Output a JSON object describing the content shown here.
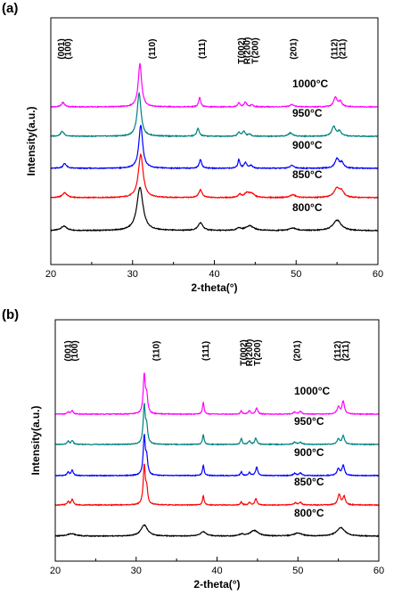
{
  "chart_data": [
    {
      "type": "line",
      "panel_label": "(a)",
      "xlabel": "2-theta(°)",
      "ylabel": "Intensity(a.u.)",
      "xlim": [
        20,
        60
      ],
      "x_ticks": [
        20,
        30,
        40,
        50,
        60
      ],
      "y_ticks_shown": false,
      "grid": false,
      "series": [
        {
          "label": "800°C",
          "color": "#000000",
          "peaks": [
            [
              21.6,
              0.9,
              0.45
            ],
            [
              30.9,
              9.0,
              0.45
            ],
            [
              38.3,
              1.6,
              0.35
            ],
            [
              43.0,
              0.5,
              0.25
            ],
            [
              44.3,
              1.0,
              0.6
            ],
            [
              49.6,
              0.5,
              0.5
            ],
            [
              55.0,
              2.2,
              0.6
            ]
          ]
        },
        {
          "label": "850°C",
          "color": "#ff0000",
          "peaks": [
            [
              21.7,
              1.0,
              0.35
            ],
            [
              31.0,
              9.0,
              0.35
            ],
            [
              38.3,
              1.6,
              0.25
            ],
            [
              43.1,
              0.6,
              0.2
            ],
            [
              44.0,
              1.0,
              0.4
            ],
            [
              44.6,
              0.7,
              0.35
            ],
            [
              49.6,
              0.6,
              0.4
            ],
            [
              55.0,
              2.0,
              0.45
            ],
            [
              55.6,
              1.0,
              0.3
            ]
          ]
        },
        {
          "label": "900°C",
          "color": "#0000ff",
          "peaks": [
            [
              21.7,
              1.0,
              0.25
            ],
            [
              31.0,
              9.0,
              0.28
            ],
            [
              38.3,
              1.8,
              0.18
            ],
            [
              43.0,
              1.8,
              0.15
            ],
            [
              43.8,
              1.2,
              0.2
            ],
            [
              44.5,
              0.6,
              0.2
            ],
            [
              49.5,
              0.6,
              0.3
            ],
            [
              55.0,
              2.0,
              0.3
            ],
            [
              55.6,
              1.1,
              0.25
            ]
          ]
        },
        {
          "label": "950°C",
          "color": "#008080",
          "peaks": [
            [
              21.4,
              1.0,
              0.25
            ],
            [
              30.8,
              9.0,
              0.28
            ],
            [
              38.0,
              1.6,
              0.18
            ],
            [
              43.0,
              0.8,
              0.18
            ],
            [
              43.6,
              1.0,
              0.2
            ],
            [
              44.3,
              0.4,
              0.2
            ],
            [
              49.3,
              0.7,
              0.3
            ],
            [
              54.6,
              2.0,
              0.28
            ],
            [
              55.3,
              1.0,
              0.25
            ]
          ]
        },
        {
          "label": "1000°C",
          "color": "#ff00ff",
          "peaks": [
            [
              21.5,
              0.9,
              0.22
            ],
            [
              30.9,
              9.0,
              0.25
            ],
            [
              38.2,
              1.9,
              0.15
            ],
            [
              43.0,
              0.9,
              0.15
            ],
            [
              43.8,
              1.0,
              0.18
            ],
            [
              44.6,
              0.4,
              0.18
            ],
            [
              49.5,
              0.5,
              0.3
            ],
            [
              54.8,
              2.0,
              0.25
            ],
            [
              55.4,
              1.1,
              0.22
            ]
          ]
        }
      ],
      "peak_annotations": [
        {
          "text": "(001)",
          "x": 21.2
        },
        {
          "text": "(100)",
          "x": 22.0
        },
        {
          "text": "(110)",
          "x": 32.3
        },
        {
          "text": "(111)",
          "x": 38.4
        },
        {
          "text": "T(002)",
          "x": 43.2
        },
        {
          "text": "R(200)",
          "x": 43.9
        },
        {
          "text": "T(200)",
          "x": 44.9
        },
        {
          "text": "(201)",
          "x": 49.6
        },
        {
          "text": "(112)",
          "x": 54.6
        },
        {
          "text": "(211)",
          "x": 55.6
        }
      ]
    },
    {
      "type": "line",
      "panel_label": "(b)",
      "xlabel": "2-theta(°)",
      "ylabel": "Intensity(a.u.)",
      "xlim": [
        20,
        60
      ],
      "x_ticks": [
        20,
        30,
        40,
        50,
        60
      ],
      "y_ticks_shown": false,
      "grid": false,
      "series": [
        {
          "label": "800°C",
          "color": "#000000",
          "peaks": [
            [
              22.0,
              0.6,
              0.6
            ],
            [
              31.0,
              2.6,
              0.5
            ],
            [
              38.3,
              1.0,
              0.45
            ],
            [
              43.0,
              0.4,
              0.3
            ],
            [
              44.6,
              1.3,
              0.6
            ],
            [
              50.0,
              0.7,
              0.6
            ],
            [
              55.3,
              2.0,
              0.6
            ]
          ]
        },
        {
          "label": "850°C",
          "color": "#ff0000",
          "peaks": [
            [
              21.6,
              0.8,
              0.15
            ],
            [
              22.1,
              1.3,
              0.15
            ],
            [
              31.0,
              9.0,
              0.15
            ],
            [
              31.3,
              3.5,
              0.15
            ],
            [
              38.3,
              2.1,
              0.12
            ],
            [
              43.0,
              0.8,
              0.12
            ],
            [
              44.0,
              0.6,
              0.15
            ],
            [
              44.8,
              1.5,
              0.15
            ],
            [
              49.7,
              0.5,
              0.2
            ],
            [
              50.3,
              0.6,
              0.2
            ],
            [
              55.1,
              2.4,
              0.2
            ],
            [
              55.7,
              2.0,
              0.18
            ]
          ]
        },
        {
          "label": "900°C",
          "color": "#0000ff",
          "peaks": [
            [
              21.6,
              0.8,
              0.15
            ],
            [
              22.1,
              1.2,
              0.15
            ],
            [
              31.0,
              9.0,
              0.15
            ],
            [
              31.3,
              3.8,
              0.15
            ],
            [
              38.3,
              2.5,
              0.12
            ],
            [
              43.0,
              0.9,
              0.12
            ],
            [
              44.0,
              0.7,
              0.15
            ],
            [
              44.9,
              2.0,
              0.15
            ],
            [
              49.6,
              0.5,
              0.2
            ],
            [
              50.3,
              0.6,
              0.2
            ],
            [
              55.0,
              1.6,
              0.2
            ],
            [
              55.6,
              2.4,
              0.18
            ]
          ]
        },
        {
          "label": "950°C",
          "color": "#008080",
          "peaks": [
            [
              21.6,
              0.7,
              0.15
            ],
            [
              22.1,
              0.9,
              0.15
            ],
            [
              31.0,
              9.0,
              0.15
            ],
            [
              31.3,
              3.8,
              0.15
            ],
            [
              38.3,
              2.3,
              0.12
            ],
            [
              43.0,
              1.4,
              0.12
            ],
            [
              44.0,
              0.8,
              0.15
            ],
            [
              44.8,
              1.5,
              0.15
            ],
            [
              49.6,
              0.5,
              0.2
            ],
            [
              50.3,
              0.5,
              0.2
            ],
            [
              55.0,
              1.2,
              0.2
            ],
            [
              55.6,
              2.0,
              0.18
            ]
          ]
        },
        {
          "label": "1000°C",
          "color": "#ff00ff",
          "peaks": [
            [
              21.6,
              0.5,
              0.15
            ],
            [
              22.1,
              0.8,
              0.15
            ],
            [
              31.0,
              9.0,
              0.15
            ],
            [
              31.3,
              4.0,
              0.15
            ],
            [
              38.3,
              2.7,
              0.12
            ],
            [
              43.0,
              0.8,
              0.12
            ],
            [
              44.0,
              0.8,
              0.15
            ],
            [
              44.9,
              1.5,
              0.15
            ],
            [
              49.6,
              0.5,
              0.2
            ],
            [
              50.3,
              0.6,
              0.2
            ],
            [
              55.0,
              1.6,
              0.2
            ],
            [
              55.6,
              3.0,
              0.18
            ]
          ]
        }
      ],
      "peak_annotations": [
        {
          "text": "(001)",
          "x": 21.5
        },
        {
          "text": "(100)",
          "x": 22.3
        },
        {
          "text": "(110)",
          "x": 32.4
        },
        {
          "text": "(111)",
          "x": 38.5
        },
        {
          "text": "T(002)",
          "x": 43.2
        },
        {
          "text": "R(200)",
          "x": 43.9
        },
        {
          "text": "T(200)",
          "x": 44.9
        },
        {
          "text": "(201)",
          "x": 49.8
        },
        {
          "text": "(112)",
          "x": 54.8
        },
        {
          "text": "(211)",
          "x": 55.8
        }
      ]
    }
  ]
}
